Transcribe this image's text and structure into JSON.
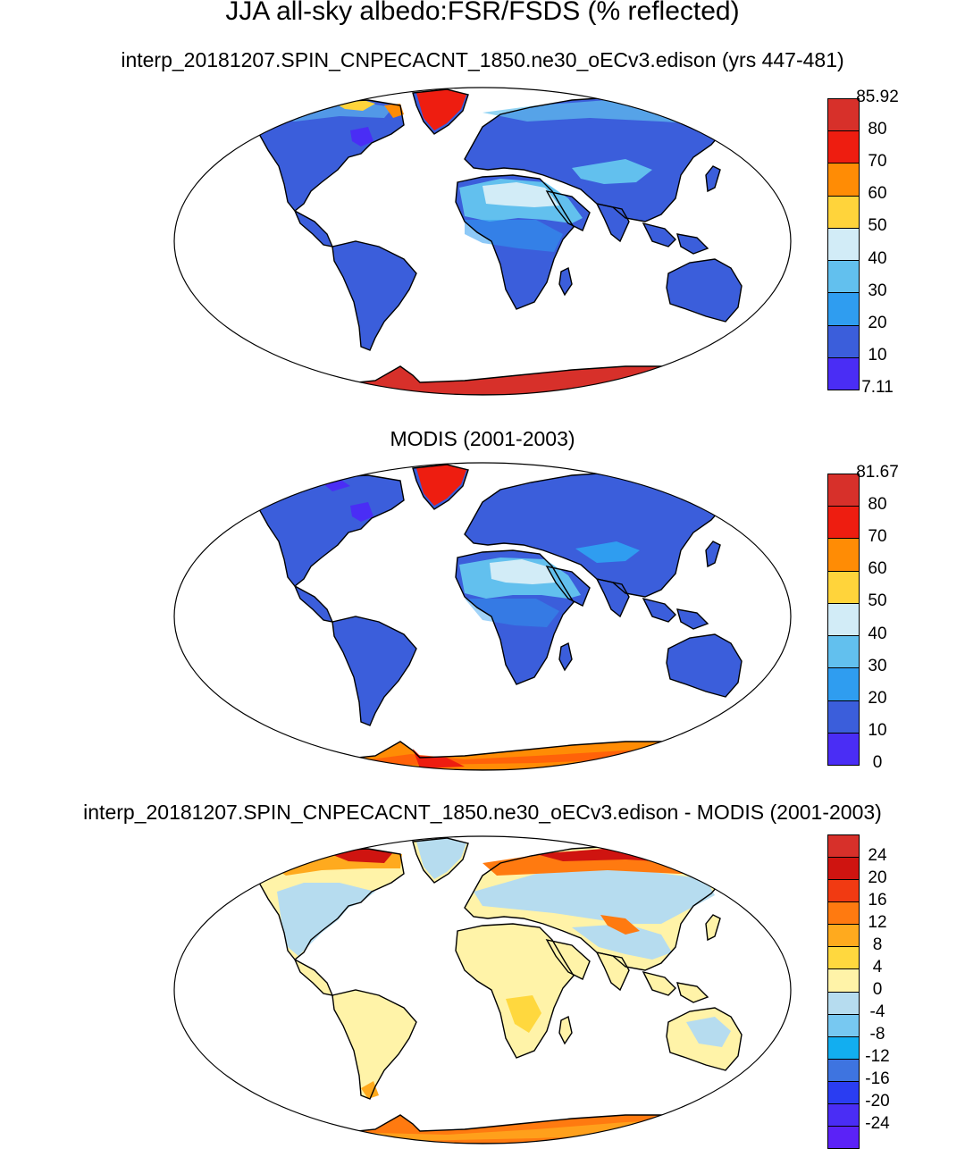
{
  "title": "JJA all-sky albedo:FSR/FSDS (% reflected)",
  "panels": [
    {
      "subtitle": "interp_20181207.SPIN_CNPECACNT_1850.ne30_oECv3.edison (yrs 447-481)",
      "colorbar": {
        "labels": [
          "85.92",
          "80",
          "70",
          "60",
          "50",
          "40",
          "30",
          "20",
          "10",
          "7.11"
        ],
        "colors": [
          "#d7302a",
          "#ee1d10",
          "#ff8c05",
          "#ffd43b",
          "#d2ecf7",
          "#62c0ee",
          "#2f9df0",
          "#3b5edb",
          "#4a2df5"
        ]
      }
    },
    {
      "subtitle": "MODIS (2001-2003)",
      "colorbar": {
        "labels": [
          "81.67",
          "80",
          "70",
          "60",
          "50",
          "40",
          "30",
          "20",
          "10",
          "0"
        ],
        "colors": [
          "#d7302a",
          "#ee1d10",
          "#ff8c05",
          "#ffd43b",
          "#d2ecf7",
          "#62c0ee",
          "#2f9df0",
          "#3b5edb",
          "#4a2df5"
        ]
      }
    },
    {
      "subtitle": "interp_20181207.SPIN_CNPECACNT_1850.ne30_oECv3.edison - MODIS (2001-2003)",
      "colorbar": {
        "labels": [
          "24",
          "20",
          "16",
          "12",
          "8",
          "4",
          "0",
          "-4",
          "-8",
          "-12",
          "-16",
          "-20",
          "-24"
        ],
        "colors": [
          "#d7302a",
          "#cf1410",
          "#f13a12",
          "#ff7a10",
          "#ffaa1e",
          "#ffd83e",
          "#fff3a8",
          "#b6dcef",
          "#77c8f1",
          "#12aef0",
          "#3e74e0",
          "#2a3df2",
          "#4a2df5",
          "#5b22f7"
        ]
      }
    }
  ]
}
